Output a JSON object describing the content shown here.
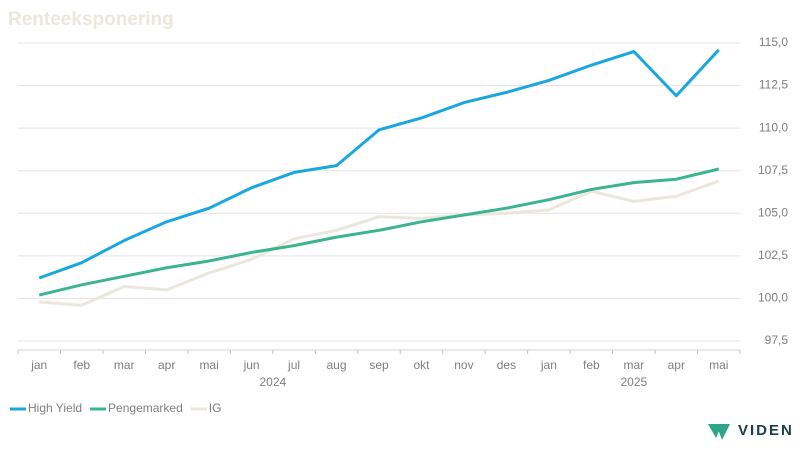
{
  "chart_data": {
    "type": "line",
    "title": "Renteeksponering",
    "categories": [
      "jan",
      "feb",
      "mar",
      "apr",
      "mai",
      "jun",
      "jul",
      "aug",
      "sep",
      "okt",
      "nov",
      "des",
      "jan",
      "feb",
      "mar",
      "apr",
      "mai"
    ],
    "year_labels": [
      "2024",
      "2025"
    ],
    "series": [
      {
        "name": "High Yield",
        "color": "#1aa7e0",
        "values": [
          101.2,
          102.1,
          103.4,
          104.5,
          105.3,
          106.5,
          107.4,
          107.8,
          109.9,
          110.6,
          111.5,
          112.1,
          112.8,
          113.7,
          114.5,
          111.9,
          114.6
        ]
      },
      {
        "name": "Pengemarked",
        "color": "#3bb58f",
        "values": [
          100.2,
          100.8,
          101.3,
          101.8,
          102.2,
          102.7,
          103.1,
          103.6,
          104.0,
          104.5,
          104.9,
          105.3,
          105.8,
          106.4,
          106.8,
          107.0,
          107.6
        ]
      },
      {
        "name": "IG",
        "color": "#ebe7dc",
        "values": [
          99.8,
          99.6,
          100.7,
          100.5,
          101.5,
          102.3,
          103.5,
          104.0,
          104.8,
          104.7,
          104.9,
          105.0,
          105.2,
          106.3,
          105.7,
          106.0,
          106.9
        ]
      }
    ],
    "ylim": [
      97.5,
      115.0
    ],
    "yticks": [
      {
        "value": 97.5,
        "label": "97,5"
      },
      {
        "value": 100,
        "label": "100,0"
      },
      {
        "value": 102.5,
        "label": "102,5"
      },
      {
        "value": 105,
        "label": "105,0"
      },
      {
        "value": 107.5,
        "label": "107,5"
      },
      {
        "value": 110,
        "label": "110,0"
      },
      {
        "value": 112.5,
        "label": "112,5"
      },
      {
        "value": 115,
        "label": "115,0"
      }
    ],
    "grid": true,
    "legend": "bottom-left",
    "logo": "VIDEN"
  }
}
